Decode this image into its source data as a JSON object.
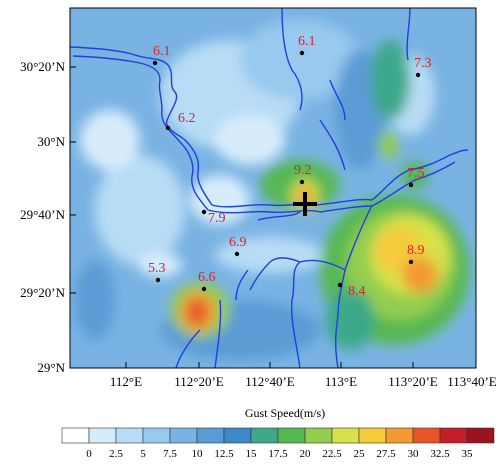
{
  "map": {
    "lat_labels": [
      "30°20’N",
      "30°N",
      "29°40’N",
      "29°20’N",
      "29°N"
    ],
    "lon_labels": [
      "112°E",
      "112°20’E",
      "112°40’E",
      "113°E",
      "113°20’E",
      "113°40’E"
    ],
    "marker_symbol": "cross-marker",
    "stations": [
      {
        "id": "s1",
        "value": "6.1"
      },
      {
        "id": "s2",
        "value": "6.1"
      },
      {
        "id": "s3",
        "value": "7.3"
      },
      {
        "id": "s4",
        "value": "6.2"
      },
      {
        "id": "s5",
        "value": "9.2"
      },
      {
        "id": "s6",
        "value": "7.5"
      },
      {
        "id": "s7",
        "value": "7.9"
      },
      {
        "id": "s8",
        "value": "6.9"
      },
      {
        "id": "s9",
        "value": "8.9"
      },
      {
        "id": "s10",
        "value": "5.3"
      },
      {
        "id": "s11",
        "value": "6.6"
      },
      {
        "id": "s12",
        "value": "8.4"
      }
    ],
    "label_color": "#e0202a",
    "river_color": "#1f3fe0"
  },
  "colorbar": {
    "title": "Gust Speed(m/s)",
    "ticks": [
      "0",
      "2.5",
      "5",
      "7.5",
      "10",
      "12.5",
      "15",
      "17.5",
      "20",
      "22.5",
      "25",
      "27.5",
      "30",
      "32.5",
      "35"
    ],
    "colors": [
      "#ffffff",
      "#d7ecfb",
      "#b8dcf5",
      "#98c9ee",
      "#79b3e3",
      "#5b9bd5",
      "#3f88c8",
      "#3da88a",
      "#57b853",
      "#93cd4f",
      "#d6e24a",
      "#f6cb3c",
      "#f39a33",
      "#e8542a",
      "#c21f2b",
      "#9a1420"
    ]
  }
}
